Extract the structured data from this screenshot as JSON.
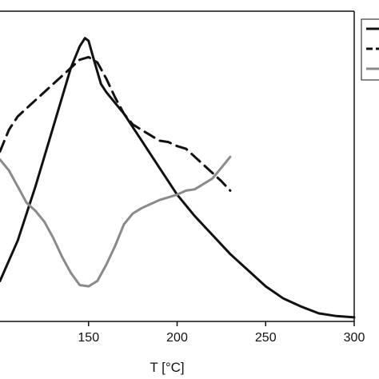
{
  "chart_data": {
    "type": "line",
    "title": "",
    "xlabel": "T [°C]",
    "ylabel": "",
    "xlim": [
      100,
      300
    ],
    "grid": false,
    "legend": {
      "placement": "top-right",
      "labels_visible": false
    },
    "x_ticks": [
      150,
      200,
      250,
      300
    ],
    "series": [
      {
        "style": "solid",
        "color": "#111111",
        "x": [
          100,
          110,
          120,
          130,
          140,
          145,
          148,
          150,
          153,
          157,
          160,
          170,
          180,
          190,
          200,
          210,
          220,
          230,
          240,
          250,
          260,
          270,
          280,
          290,
          300
        ],
        "y": [
          15,
          30,
          50,
          72,
          94,
          102,
          105,
          104,
          97,
          88,
          85,
          77,
          67,
          57,
          47,
          39,
          32,
          25,
          19,
          13,
          8.5,
          5.5,
          3,
          2,
          1.5
        ]
      },
      {
        "style": "dashed",
        "color": "#111111",
        "x": [
          100,
          105,
          110,
          120,
          130,
          140,
          145,
          150,
          155,
          160,
          165,
          170,
          175,
          180,
          185,
          190,
          195,
          200,
          205,
          210,
          215,
          220,
          225,
          230
        ],
        "y": [
          63,
          71,
          76,
          82,
          88,
          94,
          97,
          98,
          96,
          90,
          83,
          77,
          73,
          71,
          69,
          67,
          66.5,
          65,
          64,
          61,
          58,
          55,
          52,
          48.5
        ]
      },
      {
        "style": "solid",
        "color": "#8a8a8a",
        "x": [
          100,
          105,
          110,
          115,
          120,
          125,
          130,
          135,
          140,
          145,
          150,
          155,
          160,
          165,
          170,
          175,
          180,
          190,
          200,
          205,
          210,
          220,
          225,
          230
        ],
        "y": [
          60,
          56,
          50,
          44,
          41,
          37,
          31,
          24,
          18,
          13.5,
          13,
          15,
          21,
          28,
          36,
          40,
          42,
          45,
          47,
          48.5,
          49,
          53,
          57,
          61
        ]
      }
    ]
  }
}
